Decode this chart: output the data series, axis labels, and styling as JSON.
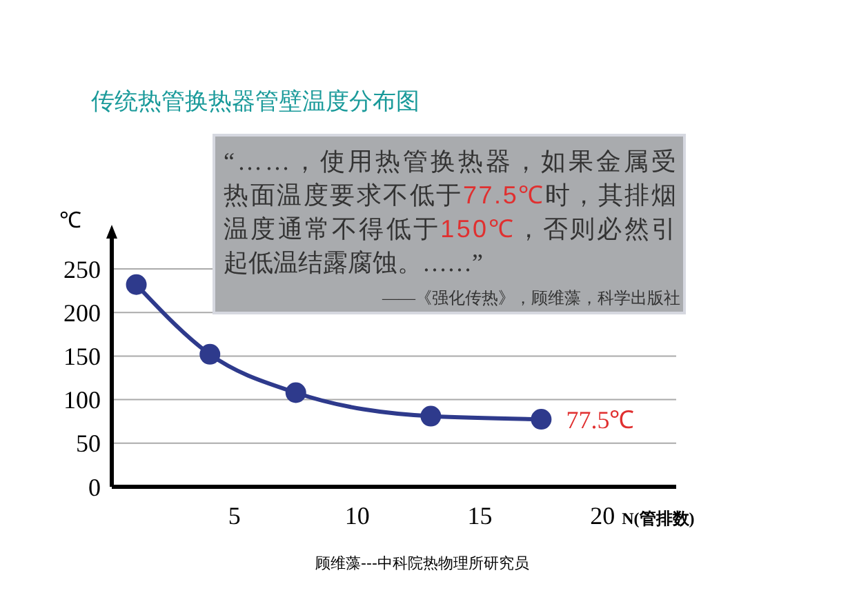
{
  "chart_data": {
    "type": "line",
    "title": "传统热管换热器管壁温度分布图",
    "xlabel": "N(管排数)",
    "ylabel": "℃",
    "x": [
      1,
      4,
      7.5,
      13,
      17.5
    ],
    "series": [
      {
        "color": "#2e3a8c",
        "values": [
          232,
          152,
          108,
          81,
          77.5
        ]
      }
    ],
    "xlim": [
      0,
      23
    ],
    "xticks": [
      5,
      10,
      15,
      20
    ],
    "ylim": [
      0,
      250
    ],
    "yticks": [
      0,
      50,
      100,
      150,
      200,
      250
    ],
    "grid": "y",
    "marker": "circle",
    "line_style": "solid",
    "annotations": [
      "“……，使用热管换热器，如果金属受",
      "热面温度要求不低于77.5℃时，其排烟",
      "温度通常不得低于150℃，否则必然引",
      "起低温结露腐蚀。……”",
      "——《强化传热》，顾维藻，科学出版社",
      {
        "text": "77.5℃",
        "x": 17.5,
        "y": 77.5
      },
      "顾维藻---中科院热物理所研究员"
    ]
  }
}
